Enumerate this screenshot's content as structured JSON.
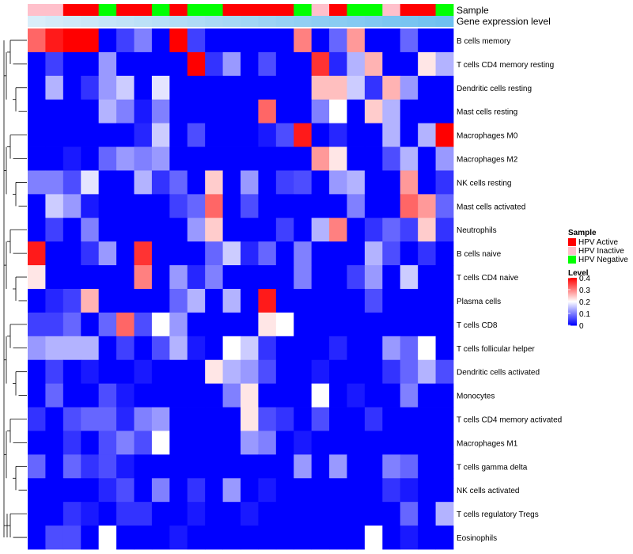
{
  "chart_data": {
    "type": "heatmap",
    "title": "",
    "annotation_tracks": [
      {
        "name": "Sample",
        "label": "Sample"
      },
      {
        "name": "Gene expression level",
        "label": "Gene expression level"
      }
    ],
    "sample_annotation": [
      "HPV Inactive",
      "HPV Inactive",
      "HPV Active",
      "HPV Active",
      "HPV Negative",
      "HPV Active",
      "HPV Active",
      "HPV Negative",
      "HPV Active",
      "HPV Negative",
      "HPV Negative",
      "HPV Active",
      "HPV Active",
      "HPV Active",
      "HPV Active",
      "HPV Negative",
      "HPV Inactive",
      "HPV Active",
      "HPV Negative",
      "HPV Negative",
      "HPV Inactive",
      "HPV Active",
      "HPV Active",
      "HPV Negative"
    ],
    "expression_level": [
      0.05,
      0.1,
      0.14,
      0.18,
      0.23,
      0.27,
      0.31,
      0.35,
      0.39,
      0.43,
      0.47,
      0.51,
      0.55,
      0.6,
      0.64,
      0.68,
      0.72,
      0.76,
      0.8,
      0.84,
      0.88,
      0.92,
      0.96,
      1.0
    ],
    "rows": [
      "B cells memory",
      "T cells CD4 memory resting",
      "Dendritic cells resting",
      "Mast cells resting",
      "Macrophages M0",
      "Macrophages M2",
      "NK cells resting",
      "Mast cells activated",
      "Neutrophils",
      "B cells naive",
      "T cells CD4 naive",
      "Plasma cells",
      "T cells CD8",
      "T cells follicular helper",
      "Dendritic cells activated",
      "Monocytes",
      "T cells CD4 memory activated",
      "Macrophages M1",
      "T cells gamma delta",
      "NK cells activated",
      "T cells regulatory  Tregs",
      "Eosinophils"
    ],
    "values": [
      [
        0.32,
        0.38,
        0.4,
        0.4,
        0.0,
        0.05,
        0.1,
        0.0,
        0.4,
        0.05,
        0.0,
        0.0,
        0.0,
        0.0,
        0.0,
        0.3,
        0.0,
        0.08,
        0.28,
        0.0,
        0.0,
        0.08,
        0.0,
        0.0
      ],
      [
        0.0,
        0.05,
        0.0,
        0.0,
        0.12,
        0.0,
        0.0,
        0.0,
        0.0,
        0.4,
        0.04,
        0.12,
        0.0,
        0.06,
        0.0,
        0.0,
        0.36,
        0.03,
        0.14,
        0.26,
        0.0,
        0.0,
        0.22,
        0.14
      ],
      [
        0.0,
        0.14,
        0.0,
        0.04,
        0.12,
        0.16,
        0.0,
        0.18,
        0.0,
        0.0,
        0.0,
        0.0,
        0.0,
        0.0,
        0.0,
        0.0,
        0.25,
        0.25,
        0.16,
        0.04,
        0.26,
        0.12,
        0.0,
        0.0
      ],
      [
        0.0,
        0.0,
        0.0,
        0.0,
        0.14,
        0.1,
        0.02,
        0.1,
        0.0,
        0.0,
        0.0,
        0.0,
        0.0,
        0.32,
        0.0,
        0.0,
        0.1,
        0.2,
        0.0,
        0.24,
        0.14,
        0.0,
        0.0,
        0.0
      ],
      [
        0.0,
        0.0,
        0.0,
        0.0,
        0.0,
        0.0,
        0.03,
        0.16,
        0.0,
        0.06,
        0.0,
        0.0,
        0.0,
        0.02,
        0.06,
        0.38,
        0.0,
        0.03,
        0.0,
        0.0,
        0.14,
        0.0,
        0.14,
        0.4
      ],
      [
        0.0,
        0.0,
        0.02,
        0.0,
        0.08,
        0.12,
        0.1,
        0.12,
        0.0,
        0.0,
        0.0,
        0.0,
        0.0,
        0.0,
        0.0,
        0.0,
        0.28,
        0.22,
        0.0,
        0.0,
        0.06,
        0.14,
        0.0,
        0.12
      ],
      [
        0.1,
        0.1,
        0.06,
        0.18,
        0.0,
        0.0,
        0.14,
        0.04,
        0.08,
        0.0,
        0.24,
        0.0,
        0.12,
        0.0,
        0.05,
        0.06,
        0.0,
        0.12,
        0.14,
        0.0,
        0.0,
        0.28,
        0.0,
        0.04
      ],
      [
        0.0,
        0.16,
        0.12,
        0.02,
        0.0,
        0.0,
        0.0,
        0.0,
        0.05,
        0.08,
        0.32,
        0.0,
        0.06,
        0.0,
        0.0,
        0.0,
        0.0,
        0.0,
        0.1,
        0.0,
        0.0,
        0.32,
        0.28,
        0.08
      ],
      [
        0.0,
        0.05,
        0.0,
        0.1,
        0.0,
        0.0,
        0.0,
        0.0,
        0.0,
        0.12,
        0.24,
        0.0,
        0.0,
        0.0,
        0.05,
        0.0,
        0.14,
        0.3,
        0.0,
        0.04,
        0.08,
        0.05,
        0.24,
        0.04
      ],
      [
        0.38,
        0.0,
        0.0,
        0.04,
        0.12,
        0.0,
        0.36,
        0.0,
        0.0,
        0.0,
        0.08,
        0.16,
        0.03,
        0.08,
        0.0,
        0.1,
        0.0,
        0.0,
        0.0,
        0.14,
        0.06,
        0.0,
        0.04,
        0.0
      ],
      [
        0.22,
        0.0,
        0.0,
        0.0,
        0.0,
        0.0,
        0.3,
        0.0,
        0.12,
        0.03,
        0.1,
        0.0,
        0.0,
        0.0,
        0.0,
        0.1,
        0.0,
        0.0,
        0.05,
        0.12,
        0.0,
        0.16,
        0.0,
        0.0
      ],
      [
        0.0,
        0.03,
        0.05,
        0.26,
        0.0,
        0.0,
        0.0,
        0.0,
        0.08,
        0.14,
        0.0,
        0.14,
        0.0,
        0.38,
        0.0,
        0.0,
        0.0,
        0.0,
        0.0,
        0.06,
        0.0,
        0.0,
        0.0,
        0.0
      ],
      [
        0.05,
        0.05,
        0.08,
        0.0,
        0.08,
        0.32,
        0.06,
        0.2,
        0.12,
        0.0,
        0.0,
        0.0,
        0.0,
        0.22,
        0.2,
        0.0,
        0.0,
        0.0,
        0.0,
        0.0,
        0.0,
        0.0,
        0.0,
        0.0
      ],
      [
        0.12,
        0.14,
        0.14,
        0.14,
        0.0,
        0.05,
        0.0,
        0.06,
        0.14,
        0.02,
        0.0,
        0.2,
        0.16,
        0.04,
        0.0,
        0.0,
        0.0,
        0.03,
        0.0,
        0.0,
        0.12,
        0.08,
        0.2,
        0.0
      ],
      [
        0.0,
        0.05,
        0.0,
        0.02,
        0.0,
        0.0,
        0.02,
        0.0,
        0.0,
        0.0,
        0.22,
        0.14,
        0.12,
        0.06,
        0.0,
        0.0,
        0.02,
        0.0,
        0.0,
        0.0,
        0.04,
        0.08,
        0.14,
        0.06
      ],
      [
        0.0,
        0.08,
        0.0,
        0.0,
        0.06,
        0.02,
        0.0,
        0.0,
        0.0,
        0.0,
        0.0,
        0.1,
        0.22,
        0.0,
        0.0,
        0.0,
        0.2,
        0.0,
        0.02,
        0.0,
        0.0,
        0.1,
        0.0,
        0.0
      ],
      [
        0.04,
        0.0,
        0.06,
        0.08,
        0.08,
        0.03,
        0.1,
        0.12,
        0.0,
        0.0,
        0.0,
        0.0,
        0.22,
        0.06,
        0.04,
        0.0,
        0.06,
        0.0,
        0.0,
        0.04,
        0.0,
        0.0,
        0.0,
        0.0
      ],
      [
        0.0,
        0.0,
        0.04,
        0.0,
        0.06,
        0.1,
        0.06,
        0.2,
        0.0,
        0.0,
        0.0,
        0.0,
        0.12,
        0.1,
        0.0,
        0.02,
        0.0,
        0.0,
        0.0,
        0.0,
        0.0,
        0.0,
        0.0,
        0.0
      ],
      [
        0.08,
        0.0,
        0.08,
        0.04,
        0.06,
        0.02,
        0.0,
        0.0,
        0.0,
        0.0,
        0.0,
        0.0,
        0.0,
        0.0,
        0.0,
        0.12,
        0.0,
        0.12,
        0.0,
        0.0,
        0.1,
        0.08,
        0.0,
        0.0
      ],
      [
        0.0,
        0.0,
        0.0,
        0.0,
        0.03,
        0.06,
        0.0,
        0.1,
        0.0,
        0.04,
        0.0,
        0.12,
        0.0,
        0.02,
        0.0,
        0.0,
        0.0,
        0.0,
        0.0,
        0.0,
        0.04,
        0.02,
        0.0,
        0.0
      ],
      [
        0.0,
        0.0,
        0.04,
        0.02,
        0.0,
        0.04,
        0.04,
        0.0,
        0.0,
        0.02,
        0.0,
        0.0,
        0.02,
        0.0,
        0.0,
        0.0,
        0.0,
        0.0,
        0.0,
        0.0,
        0.0,
        0.08,
        0.0,
        0.14
      ],
      [
        0.0,
        0.06,
        0.06,
        0.0,
        0.2,
        0.0,
        0.0,
        0.0,
        0.02,
        0.0,
        0.0,
        0.0,
        0.0,
        0.0,
        0.0,
        0.0,
        0.0,
        0.0,
        0.0,
        0.2,
        0.0,
        0.02,
        0.0,
        0.0
      ]
    ],
    "legend_sample": {
      "title": "Sample",
      "entries": [
        {
          "label": "HPV Active",
          "color": "#ff0000"
        },
        {
          "label": "HPV Inactive",
          "color": "#ffc0cb"
        },
        {
          "label": "HPV Negative",
          "color": "#00ff00"
        }
      ]
    },
    "legend_level": {
      "title": "Level",
      "ticks": [
        "0.4",
        "0.3",
        "0.2",
        "0.1",
        "0"
      ],
      "tick_values": [
        0.4,
        0.3,
        0.2,
        0.1,
        0.0
      ],
      "range": [
        0,
        0.4
      ],
      "colors": {
        "low": "#0000ff",
        "mid": "#ffffff",
        "high": "#ff0000"
      }
    }
  }
}
